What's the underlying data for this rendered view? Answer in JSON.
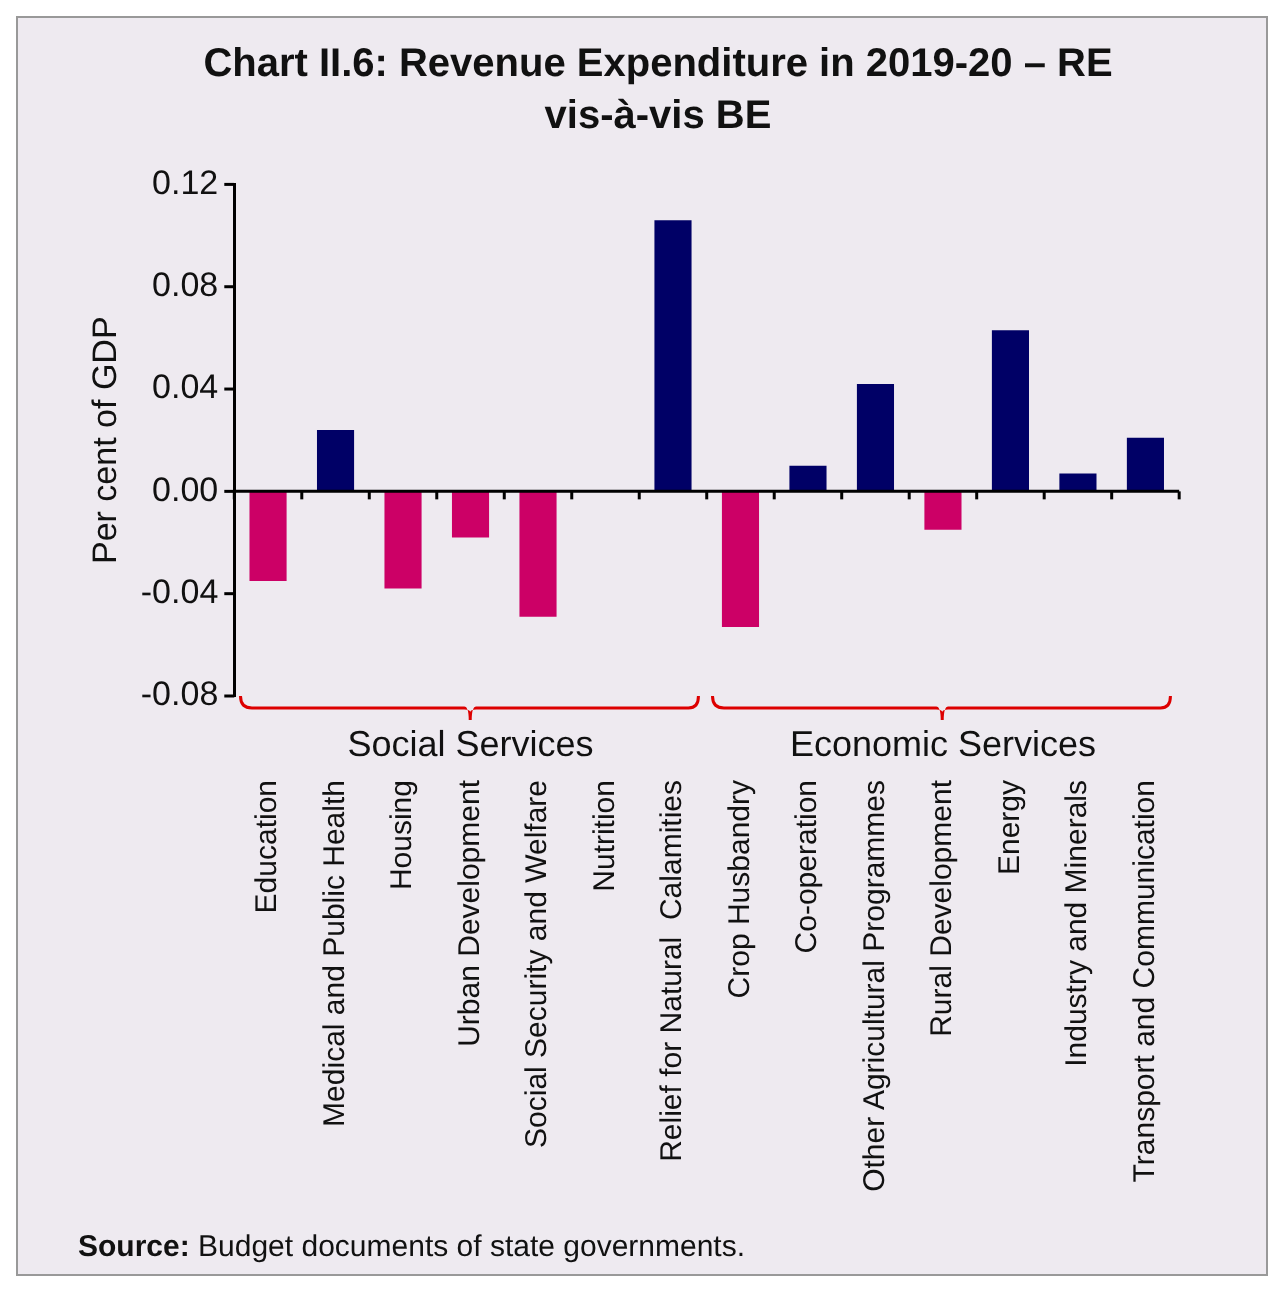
{
  "chart_data": {
    "type": "bar",
    "title": "Chart II.6: Revenue Expenditure in 2019-20 – RE vis-à-vis BE",
    "ylabel": "Per cent of GDP",
    "categories": [
      "Education",
      "Medical and Public Health",
      "Housing",
      "Urban Development",
      "Social Security and Welfare",
      "Nutrition",
      "Relief for Natural  Calamities",
      "Crop Husbandry",
      "Co-operation",
      "Other Agricultural Programmes",
      "Rural Development",
      "Energy",
      "Industry and Minerals",
      "Transport and Communication"
    ],
    "values": [
      -0.035,
      0.024,
      -0.038,
      -0.018,
      -0.049,
      0,
      0.106,
      -0.053,
      0.01,
      0.042,
      -0.015,
      0.063,
      0.007,
      0.021
    ],
    "colors": [
      "#cc0066",
      "#000066",
      "#cc0066",
      "#cc0066",
      "#cc0066",
      "#000066",
      "#000066",
      "#cc0066",
      "#000066",
      "#000066",
      "#cc0066",
      "#000066",
      "#000066",
      "#000066"
    ],
    "ylim": [
      -0.08,
      0.12
    ],
    "yticks": [
      {
        "value": -0.08,
        "label": "-0.08"
      },
      {
        "value": -0.04,
        "label": "-0.04"
      },
      {
        "value": 0,
        "label": "0.00"
      },
      {
        "value": 0.04,
        "label": "0.04"
      },
      {
        "value": 0.08,
        "label": "0.08"
      },
      {
        "value": 0.12,
        "label": "0.12"
      }
    ],
    "legend": false,
    "annotations": [
      "Social Services",
      "Economic Services",
      "Source: Budget documents of state governments."
    ]
  }
}
